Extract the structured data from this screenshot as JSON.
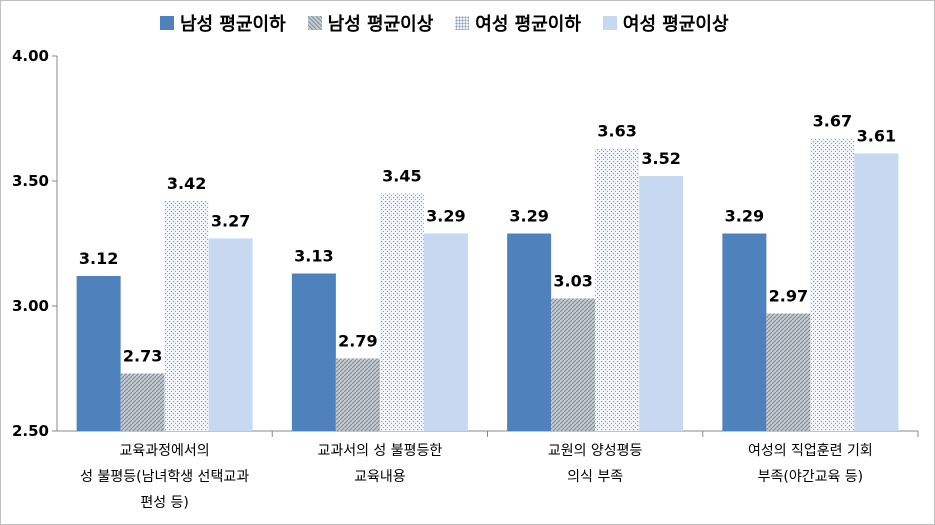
{
  "chart_data": {
    "type": "bar",
    "categories": [
      [
        "교육과정에서의",
        "성 불평등(남녀학생 선택교과",
        "편성 등)"
      ],
      [
        "교과서의 성 불평등한",
        "교육내용"
      ],
      [
        "교원의 양성평등",
        "의식 부족"
      ],
      [
        "여성의 직업훈련 기회",
        "부족(야간교육 등)"
      ]
    ],
    "series": [
      {
        "name": "남성 평균이하",
        "values": [
          3.12,
          3.13,
          3.29,
          3.29
        ],
        "color": "#4f81bd",
        "fill": "solid"
      },
      {
        "name": "남성 평균이상",
        "values": [
          2.73,
          2.79,
          3.03,
          2.97
        ],
        "color": "#a6aeb8",
        "fill": "hatch"
      },
      {
        "name": "여성 평균이하",
        "values": [
          3.42,
          3.45,
          3.63,
          3.67
        ],
        "color": "#c9d3e3",
        "fill": "dots"
      },
      {
        "name": "여성 평균이상",
        "values": [
          3.27,
          3.29,
          3.52,
          3.61
        ],
        "color": "#c6d9f1",
        "fill": "solid"
      }
    ],
    "data_labels": [
      [
        "3.12",
        "3.13",
        "3.29",
        "3.29"
      ],
      [
        "2.73",
        "2.79",
        "3.03",
        "2.97"
      ],
      [
        "3.42",
        "3.45",
        "3.63",
        "3.67"
      ],
      [
        "3.27",
        "3.29",
        "3.52",
        "3.61"
      ]
    ],
    "y_ticks": [
      "4.00",
      "3.50",
      "3.00",
      "2.50"
    ],
    "ylim": [
      2.5,
      4.0
    ],
    "legend_position": "top",
    "grid": false
  }
}
